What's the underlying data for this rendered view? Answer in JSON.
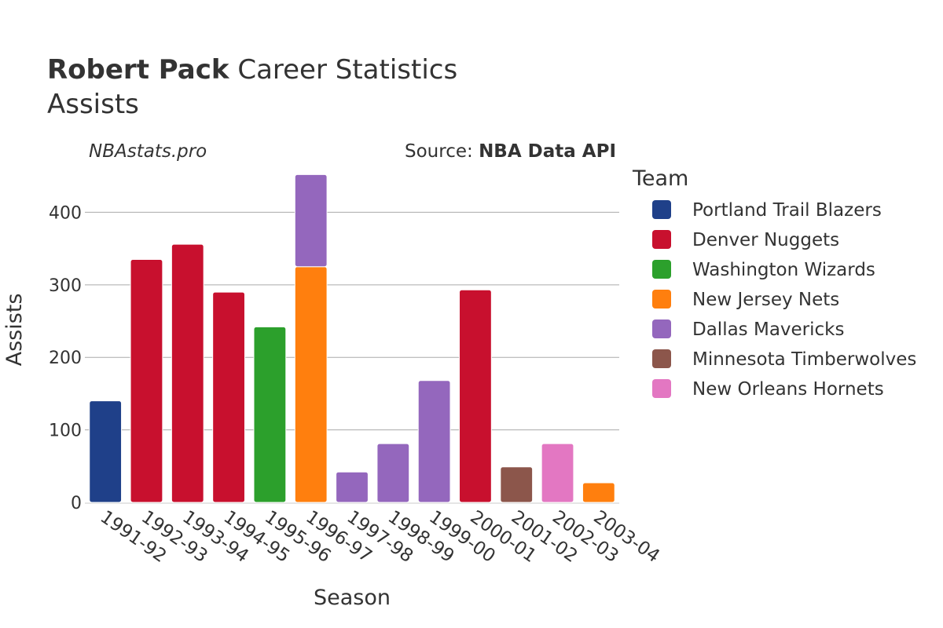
{
  "title": {
    "player": "Robert Pack",
    "suffix": "Career Statistics",
    "metric": "Assists"
  },
  "watermark": "NBAstats.pro",
  "source": {
    "prefix": "Source:",
    "name": "NBA Data API"
  },
  "legend": {
    "title": "Team",
    "items": [
      {
        "name": "Portland Trail Blazers",
        "color": "#1f4089"
      },
      {
        "name": "Denver Nuggets",
        "color": "#c8102e"
      },
      {
        "name": "Washington Wizards",
        "color": "#2ca02c"
      },
      {
        "name": "New Jersey Nets",
        "color": "#ff7f0e"
      },
      {
        "name": "Dallas Mavericks",
        "color": "#9467bd"
      },
      {
        "name": "Minnesota Timberwolves",
        "color": "#8c564b"
      },
      {
        "name": "New Orleans Hornets",
        "color": "#e377c2"
      }
    ]
  },
  "chart_data": {
    "type": "bar",
    "stacked": true,
    "xlabel": "Season",
    "ylabel": "Assists",
    "ylim": [
      0,
      460
    ],
    "yticks": [
      0,
      100,
      200,
      300,
      400
    ],
    "grid": true,
    "legend_position": "right",
    "categories": [
      "1991-92",
      "1992-93",
      "1993-94",
      "1994-95",
      "1995-96",
      "1996-97",
      "1997-98",
      "1998-99",
      "1999-00",
      "2000-01",
      "2001-02",
      "2002-03",
      "2003-04"
    ],
    "series": [
      {
        "name": "Portland Trail Blazers",
        "color": "#1f4089",
        "values": [
          140,
          0,
          0,
          0,
          0,
          0,
          0,
          0,
          0,
          0,
          0,
          0,
          0
        ]
      },
      {
        "name": "Denver Nuggets",
        "color": "#c8102e",
        "values": [
          0,
          335,
          356,
          290,
          0,
          0,
          0,
          0,
          0,
          293,
          0,
          0,
          0
        ]
      },
      {
        "name": "Washington Wizards",
        "color": "#2ca02c",
        "values": [
          0,
          0,
          0,
          0,
          242,
          0,
          0,
          0,
          0,
          0,
          0,
          0,
          0
        ]
      },
      {
        "name": "New Jersey Nets",
        "color": "#ff7f0e",
        "values": [
          0,
          0,
          0,
          0,
          0,
          325,
          0,
          0,
          0,
          0,
          0,
          0,
          27
        ]
      },
      {
        "name": "Dallas Mavericks",
        "color": "#9467bd",
        "values": [
          0,
          0,
          0,
          0,
          0,
          127,
          42,
          81,
          168,
          0,
          0,
          0,
          0
        ]
      },
      {
        "name": "Minnesota Timberwolves",
        "color": "#8c564b",
        "values": [
          0,
          0,
          0,
          0,
          0,
          0,
          0,
          0,
          0,
          0,
          49,
          0,
          0
        ]
      },
      {
        "name": "New Orleans Hornets",
        "color": "#e377c2",
        "values": [
          0,
          0,
          0,
          0,
          0,
          0,
          0,
          0,
          0,
          0,
          0,
          81,
          0
        ]
      }
    ]
  }
}
